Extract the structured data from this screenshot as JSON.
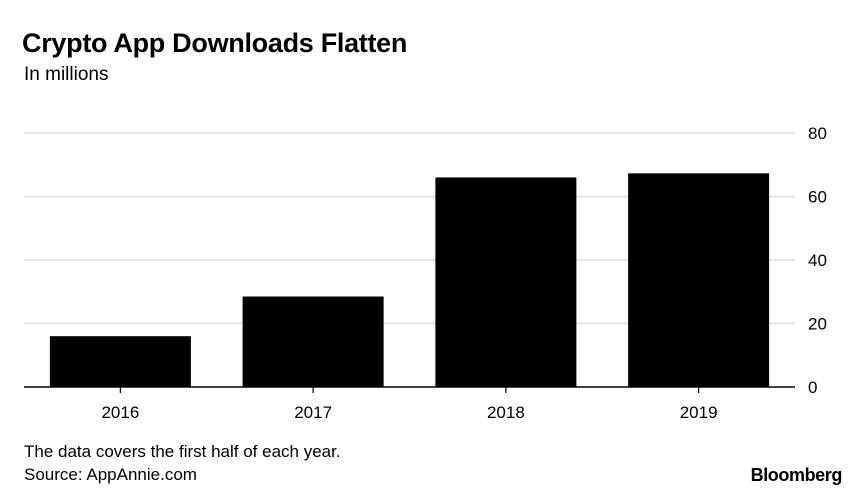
{
  "chart_data": {
    "type": "bar",
    "title": "Crypto App Downloads Flatten",
    "subtitle": "In millions",
    "categories": [
      "2016",
      "2017",
      "2018",
      "2019"
    ],
    "values": [
      16,
      28.5,
      66,
      67.3
    ],
    "ylim": [
      0,
      80
    ],
    "yticks": [
      0,
      20,
      40,
      60,
      80
    ],
    "xlabel": "",
    "ylabel": "",
    "grid": true,
    "bar_color": "#000000",
    "grid_color": "#dddddd"
  },
  "footnote": "The data covers the first half of each year.",
  "source": "Source: AppAnnie.com",
  "brand": "Bloomberg"
}
